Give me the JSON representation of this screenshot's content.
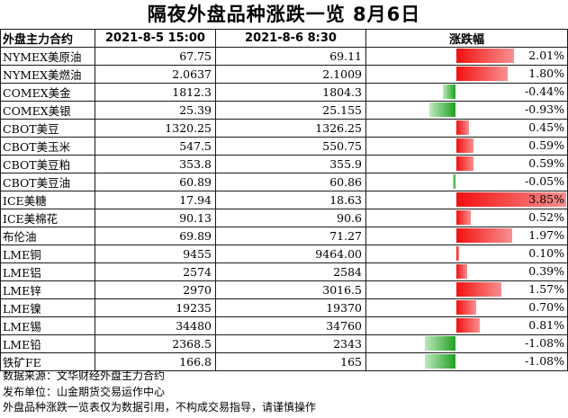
{
  "title": "隔夜外盘品种涨跌一览 8月6日",
  "header": {
    "col_name": "外盘主力合约",
    "col_d1": "2021-8-5 15:00",
    "col_d2": "2021-8-6 8:30",
    "col_chg": "涨跌幅"
  },
  "colors": {
    "up": "#f21010",
    "down": "#1fa11f"
  },
  "rows": [
    {
      "name": "NYMEX美原油",
      "d1": "67.75",
      "d2": "69.11",
      "chg": "2.01%",
      "pct": 2.01
    },
    {
      "name": "NYMEX美燃油",
      "d1": "2.0637",
      "d2": "2.1009",
      "chg": "1.80%",
      "pct": 1.8
    },
    {
      "name": "COMEX美金",
      "d1": "1812.3",
      "d2": "1804.3",
      "chg": "-0.44%",
      "pct": -0.44
    },
    {
      "name": "COMEX美银",
      "d1": "25.39",
      "d2": "25.155",
      "chg": "-0.93%",
      "pct": -0.93
    },
    {
      "name": "CBOT美豆",
      "d1": "1320.25",
      "d2": "1326.25",
      "chg": "0.45%",
      "pct": 0.45
    },
    {
      "name": "CBOT美玉米",
      "d1": "547.5",
      "d2": "550.75",
      "chg": "0.59%",
      "pct": 0.59
    },
    {
      "name": "CBOT美豆粕",
      "d1": "353.8",
      "d2": "355.9",
      "chg": "0.59%",
      "pct": 0.59
    },
    {
      "name": "CBOT美豆油",
      "d1": "60.89",
      "d2": "60.86",
      "chg": "-0.05%",
      "pct": -0.05
    },
    {
      "name": "ICE美糖",
      "d1": "17.94",
      "d2": "18.63",
      "chg": "3.85%",
      "pct": 3.85
    },
    {
      "name": "ICE美棉花",
      "d1": "90.13",
      "d2": "90.6",
      "chg": "0.52%",
      "pct": 0.52
    },
    {
      "name": "布伦油",
      "d1": "69.89",
      "d2": "71.27",
      "chg": "1.97%",
      "pct": 1.97
    },
    {
      "name": "LME铜",
      "d1": "9455",
      "d2": "9464.00",
      "chg": "0.10%",
      "pct": 0.1
    },
    {
      "name": "LME铝",
      "d1": "2574",
      "d2": "2584",
      "chg": "0.39%",
      "pct": 0.39
    },
    {
      "name": "LME锌",
      "d1": "2970",
      "d2": "3016.5",
      "chg": "1.57%",
      "pct": 1.57
    },
    {
      "name": "LME镍",
      "d1": "19235",
      "d2": "19370",
      "chg": "0.70%",
      "pct": 0.7
    },
    {
      "name": "LME锡",
      "d1": "34480",
      "d2": "34760",
      "chg": "0.81%",
      "pct": 0.81
    },
    {
      "name": "LME铅",
      "d1": "2368.5",
      "d2": "2343",
      "chg": "-1.08%",
      "pct": -1.08
    },
    {
      "name": "铁矿FE",
      "d1": "166.8",
      "d2": "165",
      "chg": "-1.08%",
      "pct": -1.08
    }
  ],
  "notes": [
    "数据来源：文华财经外盘主力合约",
    "发布单位：山金期货交易运作中心",
    "外盘品种涨跌一览表仅为数据引用，不构成交易指导，请谨慎操作"
  ]
}
